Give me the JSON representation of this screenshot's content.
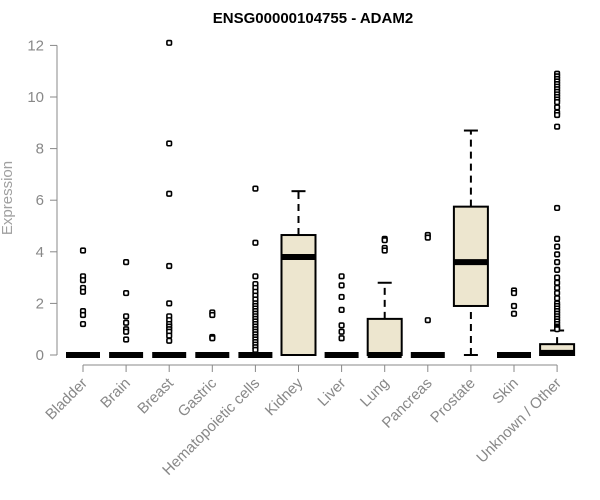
{
  "chart_data": {
    "type": "box",
    "title": "ENSG00000104755 - ADAM2",
    "xlabel": "",
    "ylabel": "Expression",
    "ylim": [
      0,
      12
    ],
    "yticks": [
      0,
      2,
      4,
      6,
      8,
      10,
      12
    ],
    "grid": false,
    "box_fill": "#ede6cf",
    "categories": [
      "Bladder",
      "Brain",
      "Breast",
      "Gastric",
      "Hematopoietic cells",
      "Kidney",
      "Liver",
      "Lung",
      "Pancreas",
      "Prostate",
      "Skin",
      "Unknown / Other"
    ],
    "boxes": [
      {
        "q1": 0,
        "median": 0,
        "q3": 0,
        "whisker_low": 0,
        "whisker_high": 0,
        "outliers": [
          4.05,
          3.05,
          2.9,
          2.6,
          2.45,
          1.7,
          1.55,
          1.2
        ]
      },
      {
        "q1": 0,
        "median": 0,
        "q3": 0,
        "whisker_low": 0,
        "whisker_high": 0,
        "outliers": [
          3.6,
          2.4,
          1.5,
          1.25,
          1.0,
          0.9,
          0.6
        ]
      },
      {
        "q1": 0,
        "median": 0,
        "q3": 0,
        "whisker_low": 0,
        "whisker_high": 0,
        "outliers": [
          12.1,
          8.2,
          6.25,
          3.45,
          2.0,
          1.5,
          1.35,
          1.2,
          1.1,
          1.0,
          0.9,
          0.75,
          0.55
        ]
      },
      {
        "q1": 0,
        "median": 0,
        "q3": 0,
        "whisker_low": 0,
        "whisker_high": 0,
        "outliers": [
          1.65,
          1.55,
          0.7,
          0.65
        ]
      },
      {
        "q1": 0,
        "median": 0,
        "q3": 0,
        "whisker_low": 0,
        "whisker_high": 0,
        "outliers": [
          6.45,
          4.35,
          3.05,
          2.75,
          2.6,
          2.45,
          2.3,
          2.15,
          2.0,
          1.9,
          1.8,
          1.7,
          1.6,
          1.5,
          1.4,
          1.3,
          1.2,
          1.1,
          1.0,
          0.9,
          0.8,
          0.7,
          0.6,
          0.5,
          0.4,
          0.3,
          0.2
        ]
      },
      {
        "q1": 0,
        "median": 3.8,
        "q3": 4.65,
        "whisker_low": 0,
        "whisker_high": 6.35,
        "outliers": []
      },
      {
        "q1": 0,
        "median": 0,
        "q3": 0,
        "whisker_low": 0,
        "whisker_high": 0,
        "outliers": [
          3.05,
          2.7,
          2.25,
          1.75,
          1.15,
          0.9,
          0.65
        ]
      },
      {
        "q1": 0,
        "median": 0,
        "q3": 1.4,
        "whisker_low": 0,
        "whisker_high": 2.8,
        "outliers": [
          4.5,
          4.45,
          4.15,
          4.05
        ]
      },
      {
        "q1": 0,
        "median": 0,
        "q3": 0,
        "whisker_low": 0,
        "whisker_high": 0,
        "outliers": [
          4.65,
          4.55,
          1.35
        ]
      },
      {
        "q1": 1.9,
        "median": 3.6,
        "q3": 5.75,
        "whisker_low": 0,
        "whisker_high": 8.7,
        "outliers": []
      },
      {
        "q1": 0,
        "median": 0,
        "q3": 0,
        "whisker_low": 0,
        "whisker_high": 0,
        "outliers": [
          2.5,
          2.4,
          1.9,
          1.6
        ]
      },
      {
        "q1": 0,
        "median": 0.08,
        "q3": 0.42,
        "whisker_low": 0,
        "whisker_high": 0.95,
        "outliers": [
          10.9,
          10.8,
          10.7,
          10.6,
          10.5,
          10.4,
          10.3,
          10.2,
          10.1,
          10.0,
          9.9,
          9.8,
          9.6,
          9.4,
          9.3,
          8.85,
          5.7,
          4.5,
          4.2,
          3.9,
          3.6,
          3.3,
          3.0,
          2.8,
          2.6,
          2.4,
          2.2,
          2.0,
          1.9,
          1.8,
          1.7,
          1.6,
          1.5,
          1.4,
          1.3,
          1.2,
          1.1,
          1.05,
          1.0
        ]
      }
    ]
  }
}
